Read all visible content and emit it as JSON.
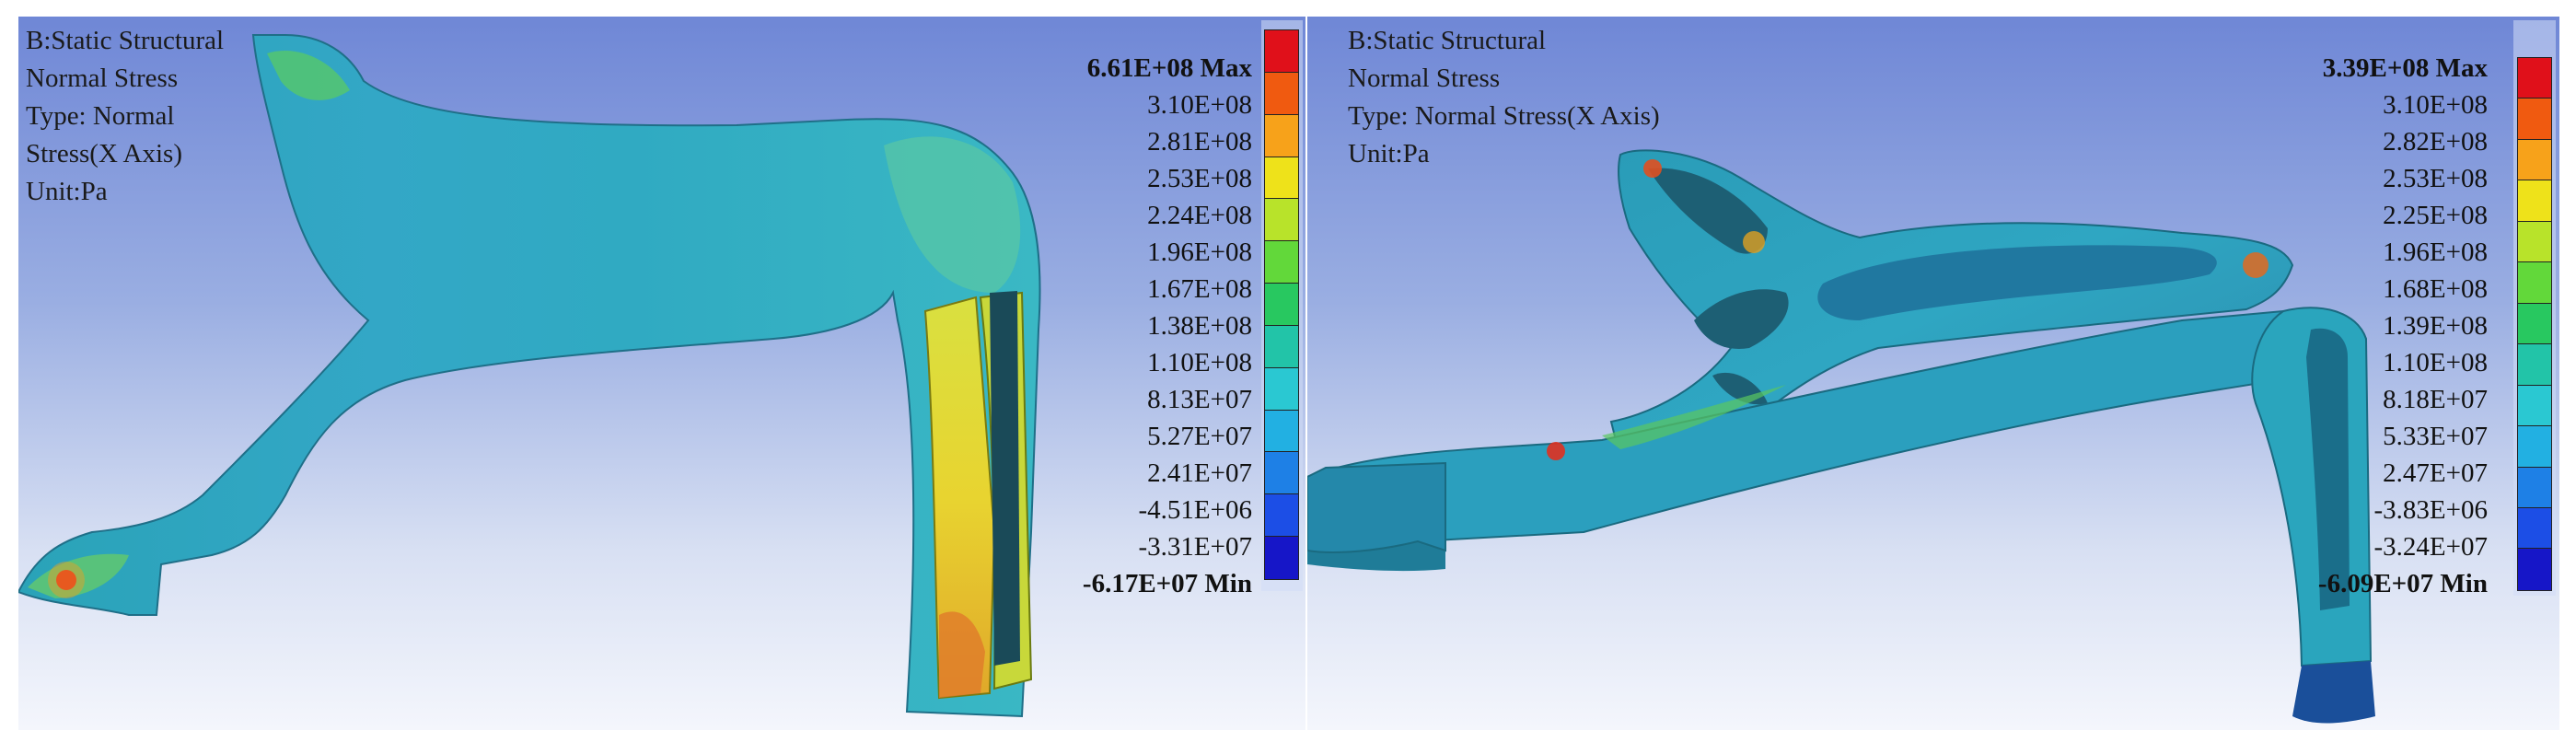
{
  "left": {
    "info": [
      "B:Static Structural",
      "Normal Stress",
      "Type: Normal",
      "Stress(X Axis)",
      "Unit:Pa"
    ],
    "legend": {
      "max_label": "6.61E+08 Max",
      "min_label": "-6.17E+07 Min",
      "values": [
        "3.10E+08",
        "2.81E+08",
        "2.53E+08",
        "2.24E+08",
        "1.96E+08",
        "1.67E+08",
        "1.38E+08",
        "1.10E+08",
        "8.13E+07",
        "5.27E+07",
        "2.41E+07",
        "-4.51E+06",
        "-3.31E+07"
      ]
    }
  },
  "right": {
    "info": [
      "B:Static Structural",
      "Normal Stress",
      "Type: Normal Stress(X Axis)",
      "Unit:Pa"
    ],
    "legend": {
      "max_label": "3.39E+08 Max",
      "min_label": "-6.09E+07 Min",
      "values": [
        "3.10E+08",
        "2.82E+08",
        "2.53E+08",
        "2.25E+08",
        "1.96E+08",
        "1.68E+08",
        "1.39E+08",
        "1.10E+08",
        "8.18E+07",
        "5.33E+07",
        "2.47E+07",
        "-3.83E+06",
        "-3.24E+07"
      ]
    }
  },
  "colormap": [
    "#e0101a",
    "#f05a10",
    "#f7a21a",
    "#eee21a",
    "#b8e32a",
    "#62d83a",
    "#28c860",
    "#22c4a8",
    "#2ac8d2",
    "#22b0e2",
    "#1e80e6",
    "#1c4ee6",
    "#1616c8"
  ]
}
